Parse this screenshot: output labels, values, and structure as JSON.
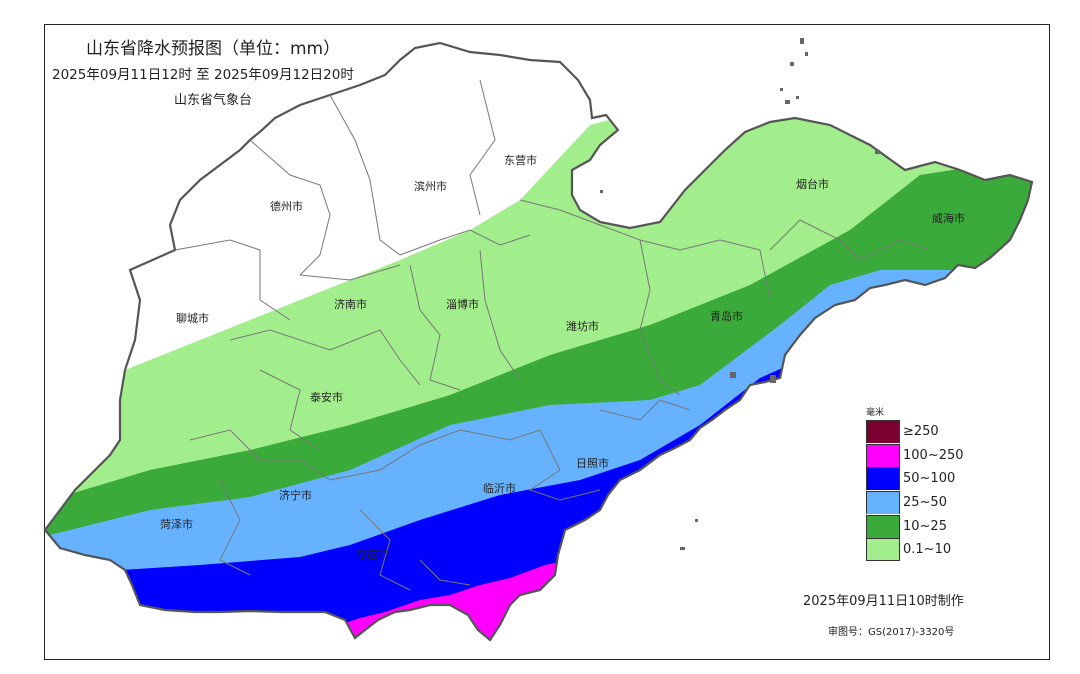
{
  "title": "山东省降水预报图（单位：mm）",
  "period": "2025年09月11日12时  至  2025年09月12日20时",
  "agency": "山东省气象台",
  "cities": {
    "dongying": "东营市",
    "binzhou": "滨州市",
    "dezhou": "德州市",
    "yantai": "烟台市",
    "weihai": "威海市",
    "liaocheng": "聊城市",
    "jinan": "济南市",
    "zibo": "淄博市",
    "weifang": "潍坊市",
    "qingdao": "青岛市",
    "taian": "泰安市",
    "rizhao": "日照市",
    "linyi": "临沂市",
    "jining": "济宁市",
    "heze": "菏泽市",
    "zaozhuang": "枣庄市"
  },
  "legend": {
    "unit": "毫米",
    "items": [
      {
        "label": "≥250",
        "color": "#7a0030"
      },
      {
        "label": "100~250",
        "color": "#ff00ff"
      },
      {
        "label": "50~100",
        "color": "#0000ff"
      },
      {
        "label": "25~50",
        "color": "#66b2ff"
      },
      {
        "label": "10~25",
        "color": "#3aab3a"
      },
      {
        "label": "0.1~10",
        "color": "#a3ee8c"
      }
    ]
  },
  "made_time": "2025年09月11日10时制作",
  "approval": "审图号：GS(2017)-3320号"
}
